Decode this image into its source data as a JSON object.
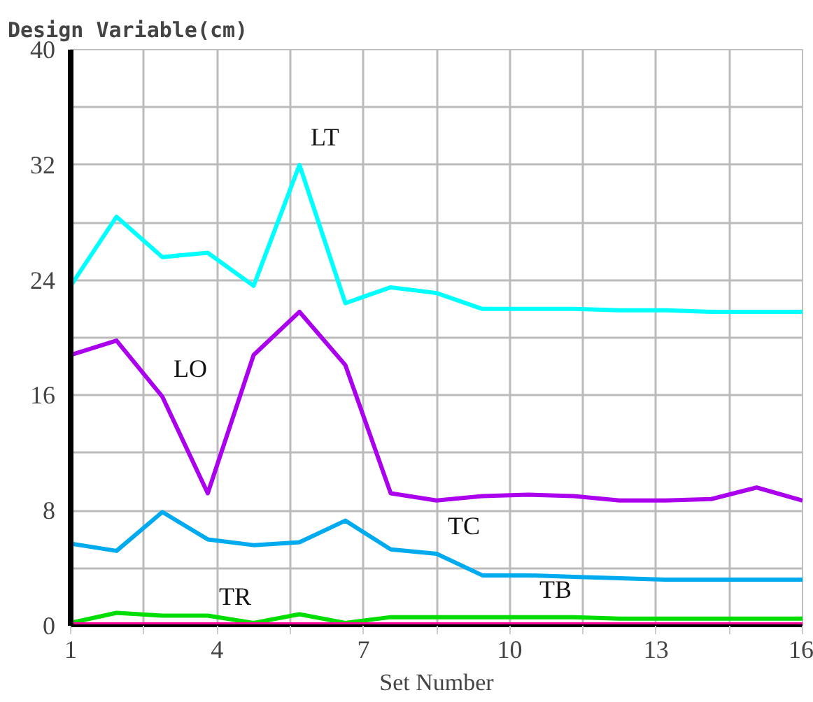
{
  "chart_data": {
    "type": "line",
    "title": "Design Variable(cm)",
    "xlabel": "Set Number",
    "x": [
      1,
      1.94,
      2.88,
      3.81,
      4.75,
      5.69,
      6.63,
      7.56,
      8.5,
      9.44,
      10.38,
      11.31,
      12.25,
      13.19,
      14.13,
      15.06,
      16
    ],
    "series": [
      {
        "color": "#00ffff",
        "values": [
          23.6,
          28.4,
          25.6,
          25.9,
          23.6,
          32.0,
          22.4,
          23.5,
          23.1,
          22.0,
          22.0,
          22.0,
          21.9,
          21.9,
          21.8,
          21.8,
          21.8
        ]
      },
      {
        "color": "#aa00ee",
        "values": [
          18.8,
          19.8,
          15.9,
          9.2,
          18.8,
          21.8,
          18.1,
          9.2,
          8.7,
          9.0,
          9.1,
          9.0,
          8.7,
          8.7,
          8.8,
          9.6,
          8.7
        ]
      },
      {
        "color": "#00aaee",
        "values": [
          5.7,
          5.2,
          7.9,
          6.0,
          5.6,
          5.8,
          7.3,
          5.3,
          5.0,
          3.5,
          3.5,
          3.4,
          3.3,
          3.2,
          3.2,
          3.2,
          3.2
        ]
      },
      {
        "color": "#00dd00",
        "values": [
          0.2,
          0.9,
          0.7,
          0.7,
          0.2,
          0.8,
          0.2,
          0.6,
          0.6,
          0.6,
          0.6,
          0.6,
          0.5,
          0.5,
          0.5,
          0.5,
          0.5
        ]
      },
      {
        "color": "#ff0099",
        "values": [
          0.1,
          0.1,
          0.1,
          0.1,
          0.1,
          0.1,
          0.1,
          0.1,
          0.1,
          0.1,
          0.1,
          0.1,
          0.1,
          0.1,
          0.1,
          0.1,
          0.1
        ]
      }
    ],
    "annotations": [
      {
        "text": "LT",
        "x": 5.69,
        "y": 32.0
      },
      {
        "text": "LO",
        "x": 2.88,
        "y": 15.9
      },
      {
        "text": "TC",
        "x": 8.5,
        "y": 5.0
      },
      {
        "text": "TB",
        "x": 10.38,
        "y": 0.6
      },
      {
        "text": "TR",
        "x": 3.81,
        "y": 0.1
      }
    ],
    "xlim": [
      1,
      16
    ],
    "ylim": [
      0,
      40
    ],
    "xticks": [
      1,
      {
        "value": 2.5,
        "label": null
      },
      4,
      {
        "value": 5.5,
        "label": null
      },
      7,
      {
        "value": 8.5,
        "label": null
      },
      10,
      {
        "value": 11.5,
        "label": null
      },
      13,
      {
        "value": 14.5,
        "label": null
      },
      16
    ],
    "yticks": [
      0,
      {
        "value": 4,
        "label": null
      },
      8,
      {
        "value": 12,
        "label": null
      },
      16,
      {
        "value": 20,
        "label": null
      },
      24,
      {
        "value": 28,
        "label": null
      },
      32,
      {
        "value": 36,
        "label": null
      },
      40
    ],
    "grid": true,
    "marker": "none",
    "line_style": "solid"
  }
}
